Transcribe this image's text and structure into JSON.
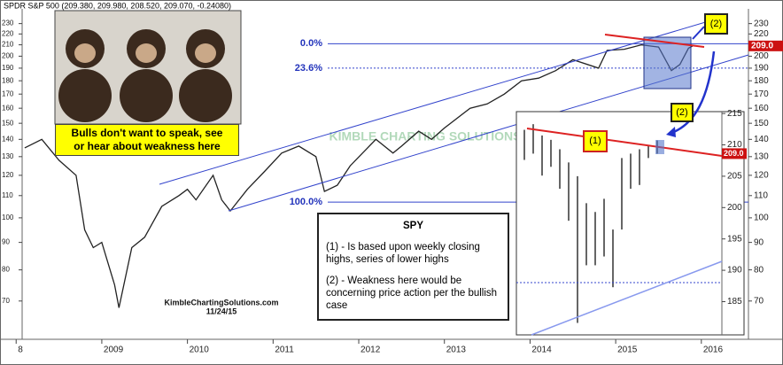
{
  "header": "SPDR S&P 500 (209.380, 209.980, 208.520, 209.070, -0.24080)",
  "caption": "Bulls don't want to speak, see or hear about weakness here",
  "notes": {
    "title": "SPY",
    "items": [
      "(1) - Is based upon weekly closing highs, series of lower highs",
      "(2) - Weakness here would be concerning price action per the bullish case"
    ]
  },
  "callouts": {
    "top": "(2)",
    "inset": "(2)",
    "resistance": "(1)"
  },
  "chart_data": [
    {
      "type": "line",
      "color": "#222222",
      "log_scale": true,
      "x": [
        2008.1,
        2008.3,
        2008.5,
        2008.7,
        2008.8,
        2008.9,
        2009.0,
        2009.15,
        2009.2,
        2009.35,
        2009.5,
        2009.7,
        2009.9,
        2010.0,
        2010.1,
        2010.3,
        2010.4,
        2010.5,
        2010.7,
        2010.9,
        2011.1,
        2011.3,
        2011.5,
        2011.6,
        2011.75,
        2011.9,
        2012.2,
        2012.4,
        2012.5,
        2012.7,
        2012.85,
        2013.0,
        2013.3,
        2013.5,
        2013.7,
        2013.9,
        2014.1,
        2014.3,
        2014.5,
        2014.8,
        2014.9,
        2015.1,
        2015.3,
        2015.5,
        2015.65,
        2015.75,
        2015.85,
        2015.9
      ],
      "values": [
        135,
        140,
        128,
        120,
        95,
        88,
        90,
        75,
        68,
        88,
        92,
        105,
        110,
        113,
        108,
        120,
        108,
        103,
        113,
        122,
        132,
        136,
        130,
        112,
        115,
        125,
        140,
        132,
        136,
        145,
        140,
        147,
        160,
        163,
        170,
        180,
        182,
        188,
        197,
        190,
        205,
        206,
        210,
        208,
        188,
        193,
        207,
        209
      ],
      "xlim": [
        2008.07,
        2016.55
      ],
      "xticks": [
        {
          "value": 2008,
          "label": "8"
        },
        2009,
        2010,
        2011,
        2012,
        2013,
        2014,
        2015,
        2016
      ],
      "ylim": [
        59.4,
        245
      ],
      "yticks": [
        70,
        80,
        90,
        100,
        110,
        120,
        130,
        140,
        150,
        160,
        170,
        180,
        190,
        200,
        210,
        220,
        230
      ],
      "last_label": "209.0",
      "levels": [
        {
          "label": "0.0%",
          "value": 211
        },
        {
          "label": "23.6%",
          "value": 190
        },
        {
          "label": "100.0%",
          "value": 107
        }
      ],
      "watermark": "KIMBLE CHARTING SOLUTIONS",
      "source": "KimbleChartingSolutions.com",
      "date": "11/24/15"
    },
    {
      "type": "range-bar",
      "color": "#333333",
      "highs": [
        212.4,
        213.3,
        211.5,
        210.8,
        209.3,
        207.2,
        205,
        200.7,
        199.3,
        201.4,
        196.5,
        207.9,
        208.6,
        209.3,
        210,
        210.7
      ],
      "lows": [
        207.6,
        208.6,
        205.1,
        206.5,
        203,
        197.9,
        181.6,
        190.8,
        190.8,
        192.2,
        187.3,
        196.5,
        203,
        203.6,
        207.9,
        208.6
      ],
      "ylim": [
        179.7,
        215.3
      ],
      "yticks": [
        185,
        190,
        195,
        200,
        205,
        210,
        215
      ],
      "last_label": "209.0"
    }
  ]
}
